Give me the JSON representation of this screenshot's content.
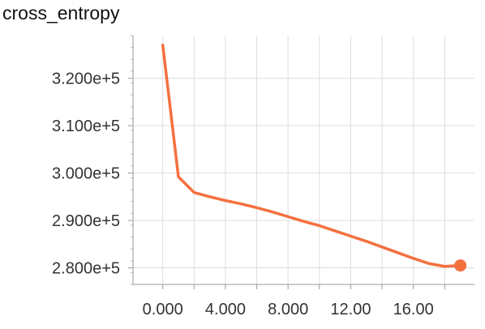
{
  "chart_data": {
    "type": "line",
    "title": "cross_entropy",
    "xlabel": "",
    "ylabel": "",
    "xlim": [
      -1.9,
      19.9
    ],
    "ylim": [
      276500,
      329000
    ],
    "grid": true,
    "legend": "none",
    "x_ticks": [
      0,
      2,
      4,
      6,
      8,
      10,
      12,
      14,
      16,
      18
    ],
    "x_tick_labels": [
      "0.000",
      "",
      "4.000",
      "",
      "8.000",
      "",
      "12.00",
      "",
      "16.00",
      ""
    ],
    "y_ticks": [
      280000,
      290000,
      300000,
      310000,
      320000
    ],
    "y_tick_labels": [
      "2.800e+5",
      "2.900e+5",
      "3.000e+5",
      "3.100e+5",
      "3.200e+5"
    ],
    "series": [
      {
        "color": "#f4703f",
        "x": [
          0,
          1,
          2,
          3,
          4,
          5,
          6,
          7,
          8,
          9,
          10,
          11,
          12,
          13,
          14,
          15,
          16,
          17,
          18,
          19
        ],
        "y": [
          327000,
          299200,
          295900,
          295000,
          294200,
          293500,
          292700,
          291800,
          290800,
          289800,
          288900,
          287800,
          286700,
          285600,
          284400,
          283200,
          282000,
          280900,
          280300,
          280500
        ]
      }
    ]
  }
}
